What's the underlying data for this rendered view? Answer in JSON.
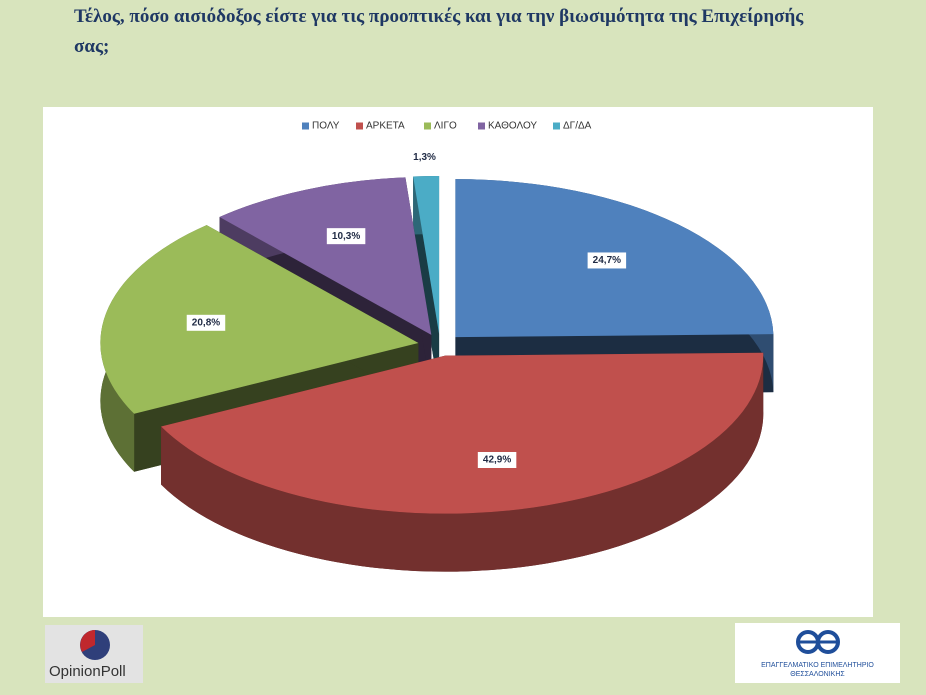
{
  "chart_data": {
    "type": "pie3d",
    "title": "Τέλος, πόσο αισιόδοξος είστε για τις προοπτικές και για την βιωσιμότητα της Επιχείρησής σας;",
    "categories": [
      "ΠΟΛΥ",
      "ΑΡΚΕΤΑ",
      "ΛΙΓΟ",
      "ΚΑΘΟΛΟΥ",
      "ΔΓ/ΔΑ"
    ],
    "values": [
      24.7,
      42.9,
      20.8,
      10.3,
      1.3
    ],
    "value_labels": [
      "24,7%",
      "42,9%",
      "20,8%",
      "10,3%",
      "1,3%"
    ],
    "colors": [
      "#4f81bd",
      "#c0504d",
      "#9bbb59",
      "#8064a2",
      "#4bacc6"
    ],
    "legend": "top"
  },
  "logos": {
    "left": "OpinionPoll",
    "right_line1": "ΕΠΑΓΓΕΛΜΑΤΙΚΟ ΕΠΙΜΕΛΗΤΗΡΙΟ",
    "right_line2": "ΘΕΣΣΑΛΟΝΙΚΗΣ"
  }
}
